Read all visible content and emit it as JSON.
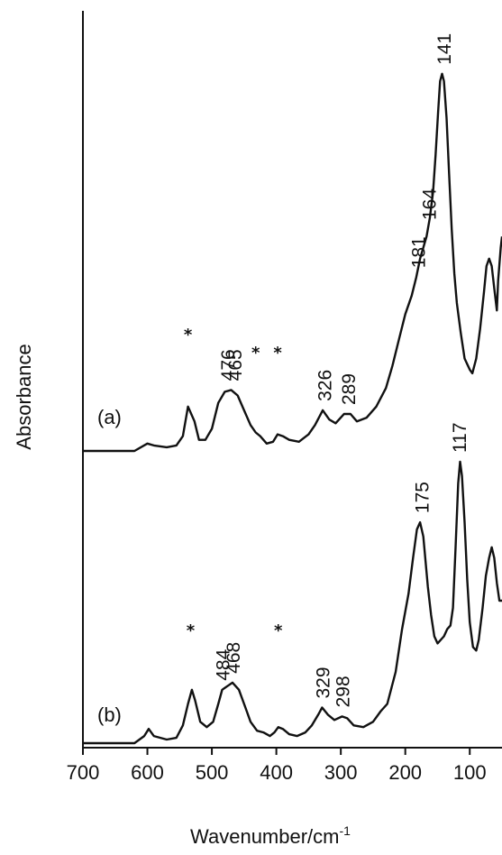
{
  "chart_data": {
    "type": "line",
    "xlabel": "Wavenumber/cm",
    "xlabel_sup": "-1",
    "ylabel": "Absorbance",
    "xlim": [
      700,
      50
    ],
    "x_reversed": true,
    "x_ticks": [
      700,
      600,
      500,
      400,
      300,
      200,
      100
    ],
    "y_ticks": [],
    "grid": false,
    "series": [
      {
        "name": "(a)",
        "points": [
          [
            700,
            0.0
          ],
          [
            650,
            0.0
          ],
          [
            620,
            0.0
          ],
          [
            600,
            0.02
          ],
          [
            590,
            0.015
          ],
          [
            570,
            0.01
          ],
          [
            555,
            0.015
          ],
          [
            545,
            0.04
          ],
          [
            537,
            0.12
          ],
          [
            532,
            0.1
          ],
          [
            527,
            0.08
          ],
          [
            520,
            0.03
          ],
          [
            510,
            0.03
          ],
          [
            500,
            0.06
          ],
          [
            490,
            0.13
          ],
          [
            480,
            0.16
          ],
          [
            470,
            0.165
          ],
          [
            460,
            0.15
          ],
          [
            450,
            0.11
          ],
          [
            440,
            0.07
          ],
          [
            432,
            0.05
          ],
          [
            425,
            0.04
          ],
          [
            415,
            0.02
          ],
          [
            405,
            0.025
          ],
          [
            398,
            0.045
          ],
          [
            390,
            0.04
          ],
          [
            380,
            0.03
          ],
          [
            365,
            0.025
          ],
          [
            350,
            0.045
          ],
          [
            340,
            0.07
          ],
          [
            328,
            0.11
          ],
          [
            318,
            0.085
          ],
          [
            308,
            0.075
          ],
          [
            295,
            0.1
          ],
          [
            285,
            0.1
          ],
          [
            275,
            0.08
          ],
          [
            260,
            0.09
          ],
          [
            245,
            0.12
          ],
          [
            230,
            0.17
          ],
          [
            220,
            0.23
          ],
          [
            210,
            0.3
          ],
          [
            200,
            0.37
          ],
          [
            190,
            0.42
          ],
          [
            183,
            0.47
          ],
          [
            177,
            0.52
          ],
          [
            172,
            0.55
          ],
          [
            167,
            0.58
          ],
          [
            162,
            0.63
          ],
          [
            157,
            0.7
          ],
          [
            153,
            0.8
          ],
          [
            149,
            0.92
          ],
          [
            146,
            1.0
          ],
          [
            143,
            1.02
          ],
          [
            140,
            1.0
          ],
          [
            136,
            0.9
          ],
          [
            132,
            0.75
          ],
          [
            128,
            0.6
          ],
          [
            124,
            0.48
          ],
          [
            120,
            0.4
          ],
          [
            114,
            0.32
          ],
          [
            108,
            0.25
          ],
          [
            100,
            0.22
          ],
          [
            96,
            0.21
          ],
          [
            90,
            0.25
          ],
          [
            84,
            0.33
          ],
          [
            78,
            0.43
          ],
          [
            74,
            0.5
          ],
          [
            70,
            0.52
          ],
          [
            66,
            0.5
          ],
          [
            62,
            0.44
          ],
          [
            58,
            0.38
          ],
          [
            56,
            0.46
          ],
          [
            52,
            0.55
          ],
          [
            50,
            0.58
          ]
        ],
        "peaks": [
          {
            "wavenumber": 476,
            "label": "476",
            "y": 0.165
          },
          {
            "wavenumber": 465,
            "label": "465",
            "y": 0.165
          },
          {
            "wavenumber": 326,
            "label": "326",
            "y": 0.11
          },
          {
            "wavenumber": 289,
            "label": "289",
            "y": 0.1
          },
          {
            "wavenumber": 181,
            "label": "181",
            "y": 0.47
          },
          {
            "wavenumber": 164,
            "label": "164",
            "y": 0.6
          },
          {
            "wavenumber": 141,
            "label": "141",
            "y": 1.02
          }
        ],
        "stars": [
          {
            "wavenumber": 537,
            "label": "*"
          },
          {
            "wavenumber": 432,
            "label": "*"
          },
          {
            "wavenumber": 398,
            "label": "*"
          }
        ]
      },
      {
        "name": "(b)",
        "points": [
          [
            700,
            0.0
          ],
          [
            650,
            0.0
          ],
          [
            620,
            0.0
          ],
          [
            605,
            0.02
          ],
          [
            598,
            0.04
          ],
          [
            590,
            0.02
          ],
          [
            570,
            0.01
          ],
          [
            555,
            0.015
          ],
          [
            545,
            0.05
          ],
          [
            537,
            0.11
          ],
          [
            531,
            0.15
          ],
          [
            526,
            0.12
          ],
          [
            518,
            0.06
          ],
          [
            508,
            0.045
          ],
          [
            498,
            0.06
          ],
          [
            490,
            0.11
          ],
          [
            484,
            0.15
          ],
          [
            476,
            0.16
          ],
          [
            468,
            0.17
          ],
          [
            458,
            0.15
          ],
          [
            448,
            0.1
          ],
          [
            440,
            0.06
          ],
          [
            430,
            0.035
          ],
          [
            420,
            0.03
          ],
          [
            410,
            0.02
          ],
          [
            403,
            0.03
          ],
          [
            397,
            0.045
          ],
          [
            390,
            0.04
          ],
          [
            380,
            0.025
          ],
          [
            368,
            0.02
          ],
          [
            355,
            0.03
          ],
          [
            345,
            0.05
          ],
          [
            335,
            0.08
          ],
          [
            329,
            0.1
          ],
          [
            320,
            0.08
          ],
          [
            310,
            0.065
          ],
          [
            298,
            0.075
          ],
          [
            290,
            0.07
          ],
          [
            280,
            0.05
          ],
          [
            265,
            0.045
          ],
          [
            250,
            0.06
          ],
          [
            238,
            0.09
          ],
          [
            228,
            0.11
          ],
          [
            215,
            0.2
          ],
          [
            205,
            0.32
          ],
          [
            195,
            0.42
          ],
          [
            188,
            0.52
          ],
          [
            182,
            0.6
          ],
          [
            177,
            0.62
          ],
          [
            172,
            0.58
          ],
          [
            165,
            0.44
          ],
          [
            160,
            0.36
          ],
          [
            155,
            0.3
          ],
          [
            150,
            0.28
          ],
          [
            145,
            0.29
          ],
          [
            140,
            0.3
          ],
          [
            135,
            0.32
          ],
          [
            130,
            0.33
          ],
          [
            126,
            0.38
          ],
          [
            122,
            0.55
          ],
          [
            118,
            0.73
          ],
          [
            115,
            0.79
          ],
          [
            112,
            0.75
          ],
          [
            108,
            0.62
          ],
          [
            104,
            0.46
          ],
          [
            100,
            0.34
          ],
          [
            95,
            0.27
          ],
          [
            90,
            0.26
          ],
          [
            86,
            0.29
          ],
          [
            80,
            0.38
          ],
          [
            75,
            0.47
          ],
          [
            70,
            0.52
          ],
          [
            66,
            0.55
          ],
          [
            62,
            0.52
          ],
          [
            58,
            0.45
          ],
          [
            54,
            0.4
          ],
          [
            50,
            0.4
          ]
        ],
        "peaks": [
          {
            "wavenumber": 484,
            "label": "484",
            "y": 0.15
          },
          {
            "wavenumber": 468,
            "label": "468",
            "y": 0.17
          },
          {
            "wavenumber": 329,
            "label": "329",
            "y": 0.1
          },
          {
            "wavenumber": 298,
            "label": "298",
            "y": 0.075
          },
          {
            "wavenumber": 175,
            "label": "175",
            "y": 0.62
          },
          {
            "wavenumber": 117,
            "label": "117",
            "y": 0.79
          }
        ],
        "stars": [
          {
            "wavenumber": 533,
            "label": "*"
          },
          {
            "wavenumber": 397,
            "label": "*"
          }
        ]
      }
    ]
  }
}
